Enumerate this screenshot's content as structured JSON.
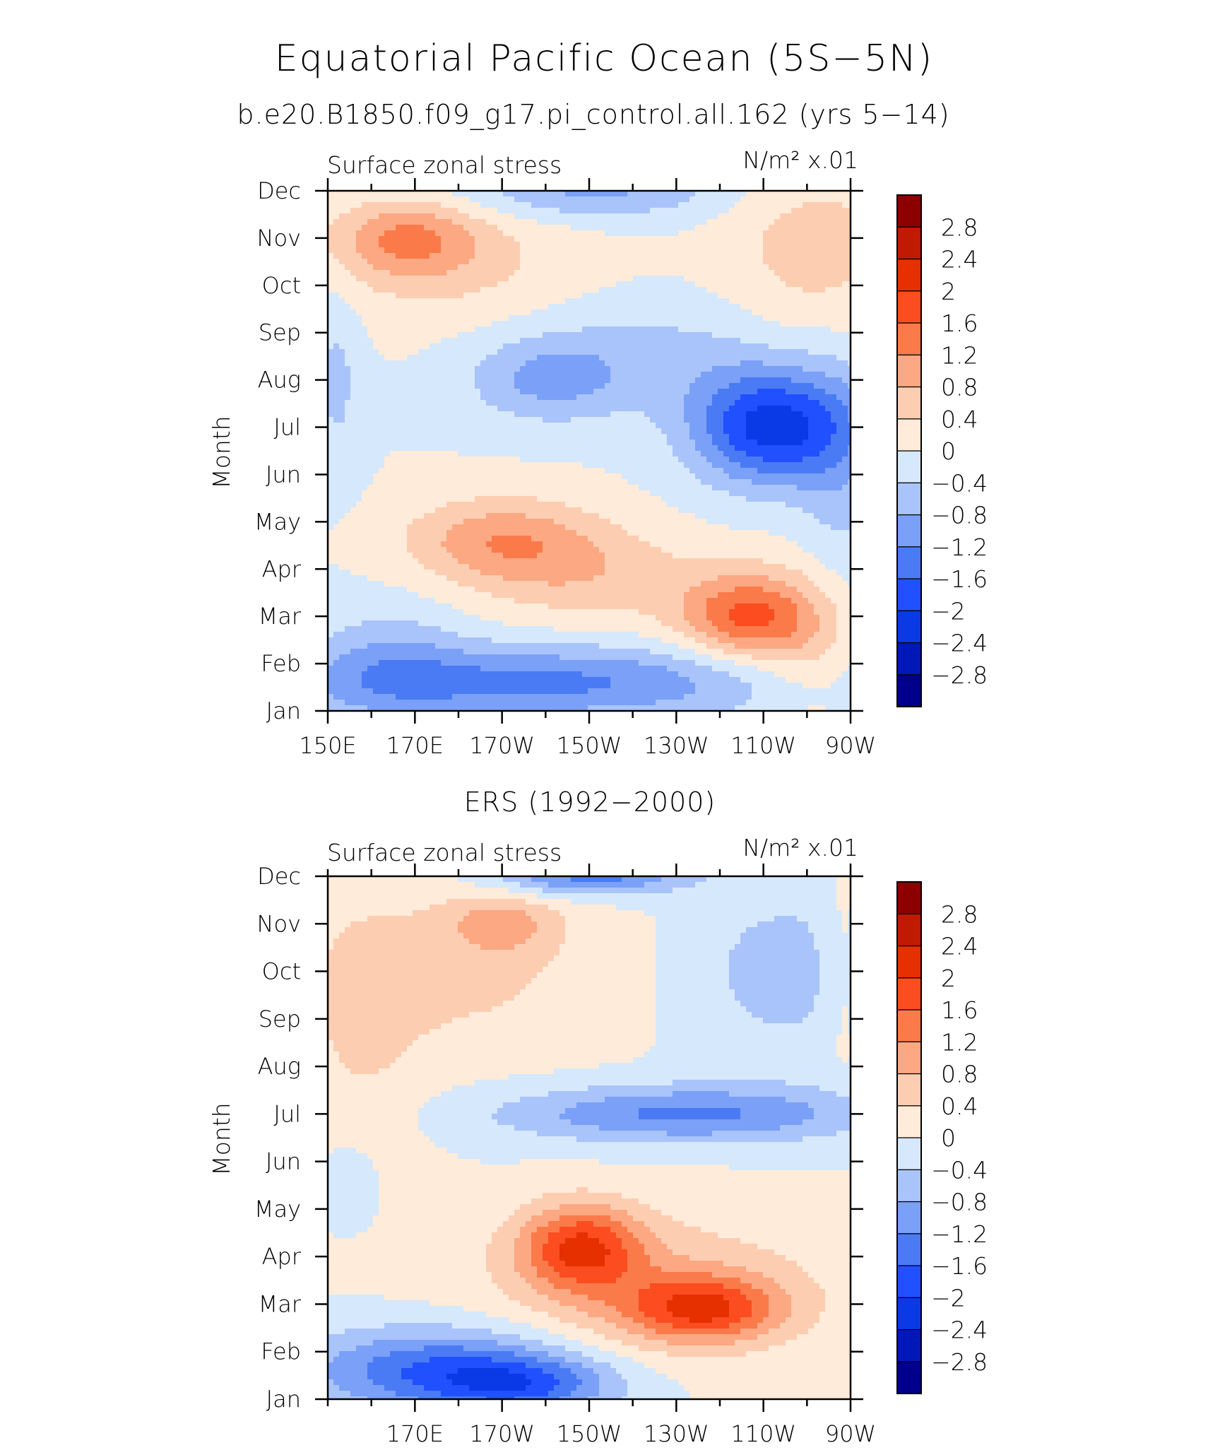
{
  "figure": {
    "title": "Equatorial Pacific Ocean (5S−5N)"
  },
  "levels": [
    -2.8,
    -2.4,
    -2,
    -1.6,
    -1.2,
    -0.8,
    -0.4,
    0,
    0.4,
    0.8,
    1.2,
    1.6,
    2,
    2.4,
    2.8
  ],
  "level_labels": [
    "−2.8",
    "−2.4",
    "−2",
    "−1.6",
    "−1.2",
    "−0.8",
    "−0.4",
    "0",
    "0.4",
    "0.8",
    "1.2",
    "1.6",
    "2",
    "2.4",
    "2.8"
  ],
  "colors": [
    "#00008c",
    "#0018b8",
    "#0a3ae6",
    "#2050ff",
    "#4a7bf5",
    "#7aa0f8",
    "#a9c4fa",
    "#d6e8fc",
    "#feebd9",
    "#fdcdb2",
    "#fca882",
    "#fb7a4a",
    "#fb4d20",
    "#e63000",
    "#c01a00",
    "#8c0000"
  ],
  "chart_data": [
    {
      "type": "heatmap",
      "subtitle": "b.e20.B1850.f09_g17.pi_control.all.162 (yrs 5−14)",
      "variable_label": "Surface zonal stress",
      "units_label": "N/m² x.01",
      "ylabel": "Month",
      "x_tick_values": [
        150,
        170,
        190,
        210,
        230,
        250,
        270
      ],
      "x_tick_labels": [
        "150E",
        "170E",
        "170W",
        "150W",
        "130W",
        "110W",
        "90W"
      ],
      "y_tick_labels": [
        "Jan",
        "Feb",
        "Mar",
        "Apr",
        "May",
        "Jun",
        "Jul",
        "Aug",
        "Sep",
        "Oct",
        "Nov",
        "Dec"
      ],
      "xlim": [
        150,
        270
      ],
      "ylim": [
        1,
        12
      ],
      "features": [
        {
          "lon": 200,
          "month": 1.6,
          "value": -1.3,
          "rlon": 55,
          "rmon": 0.8
        },
        {
          "lon": 164,
          "month": 2.0,
          "value": -0.6,
          "rlon": 18,
          "rmon": 1.3
        },
        {
          "lon": 190,
          "month": 4.6,
          "value": 1.1,
          "rlon": 22,
          "rmon": 0.9
        },
        {
          "lon": 212,
          "month": 3.8,
          "value": 0.6,
          "rlon": 26,
          "rmon": 1.0
        },
        {
          "lon": 246,
          "month": 3.0,
          "value": 1.6,
          "rlon": 15,
          "rmon": 0.9
        },
        {
          "lon": 260,
          "month": 2.4,
          "value": 0.5,
          "rlon": 12,
          "rmon": 1.6
        },
        {
          "lon": 252,
          "month": 7.0,
          "value": -2.2,
          "rlon": 18,
          "rmon": 1.2
        },
        {
          "lon": 200,
          "month": 8.0,
          "value": -0.8,
          "rlon": 18,
          "rmon": 0.9
        },
        {
          "lon": 225,
          "month": 8.5,
          "value": -0.5,
          "rlon": 30,
          "rmon": 1.2
        },
        {
          "lon": 268,
          "month": 6.0,
          "value": -0.5,
          "rlon": 10,
          "rmon": 2.5
        },
        {
          "lon": 152,
          "month": 8.0,
          "value": -0.5,
          "rlon": 6,
          "rmon": 2.0
        },
        {
          "lon": 168,
          "month": 11.0,
          "value": 1.0,
          "rlon": 16,
          "rmon": 0.8
        },
        {
          "lon": 178,
          "month": 10.5,
          "value": 0.5,
          "rlon": 30,
          "rmon": 1.3
        },
        {
          "lon": 210,
          "month": 12.0,
          "value": -0.9,
          "rlon": 30,
          "rmon": 0.6
        },
        {
          "lon": 262,
          "month": 10.8,
          "value": 0.6,
          "rlon": 20,
          "rmon": 1.8
        }
      ]
    },
    {
      "type": "heatmap",
      "subtitle": "ERS (1992−2000)",
      "variable_label": "Surface zonal stress",
      "units_label": "N/m² x.01",
      "ylabel": "Month",
      "x_tick_values": [
        170,
        190,
        210,
        230,
        250,
        270
      ],
      "x_tick_labels": [
        "170E",
        "170W",
        "150W",
        "130W",
        "110W",
        "90W"
      ],
      "y_tick_labels": [
        "Jan",
        "Feb",
        "Mar",
        "Apr",
        "May",
        "Jun",
        "Jul",
        "Aug",
        "Sep",
        "Oct",
        "Nov",
        "Dec"
      ],
      "xlim": [
        150,
        270
      ],
      "ylim": [
        1,
        12
      ],
      "features": [
        {
          "lon": 175,
          "month": 1.6,
          "value": -1.6,
          "rlon": 30,
          "rmon": 0.9
        },
        {
          "lon": 196,
          "month": 1.3,
          "value": -1.2,
          "rlon": 20,
          "rmon": 0.6
        },
        {
          "lon": 208,
          "month": 4.2,
          "value": 1.8,
          "rlon": 14,
          "rmon": 0.9
        },
        {
          "lon": 236,
          "month": 2.9,
          "value": 1.7,
          "rlon": 18,
          "rmon": 0.7
        },
        {
          "lon": 225,
          "month": 3.4,
          "value": 0.7,
          "rlon": 40,
          "rmon": 1.5
        },
        {
          "lon": 232,
          "month": 7.0,
          "value": -1.3,
          "rlon": 42,
          "rmon": 0.6
        },
        {
          "lon": 255,
          "month": 10.0,
          "value": -0.6,
          "rlon": 22,
          "rmon": 1.8
        },
        {
          "lon": 210,
          "month": 12.0,
          "value": -1.4,
          "rlon": 22,
          "rmon": 0.4
        },
        {
          "lon": 190,
          "month": 11.0,
          "value": 0.8,
          "rlon": 12,
          "rmon": 0.6
        },
        {
          "lon": 180,
          "month": 10.0,
          "value": 0.5,
          "rlon": 35,
          "rmon": 1.8
        },
        {
          "lon": 158,
          "month": 8.5,
          "value": 0.35,
          "rlon": 14,
          "rmon": 3.0
        },
        {
          "lon": 155,
          "month": 5.5,
          "value": -0.5,
          "rlon": 6,
          "rmon": 0.8
        },
        {
          "lon": 268,
          "month": 10.0,
          "value": 0.4,
          "rlon": 5,
          "rmon": 2.0
        }
      ]
    }
  ]
}
